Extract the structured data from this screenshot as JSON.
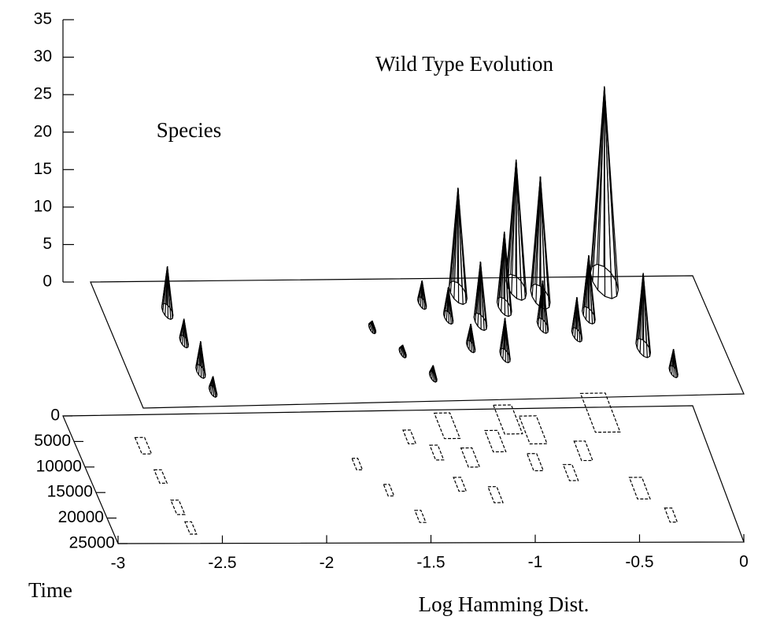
{
  "chart_data": {
    "type": "surface3d",
    "title": "Wild Type Evolution",
    "zlabel": "Species",
    "ylabel": "Time",
    "xlabel": "Log Hamming Dist.",
    "x": [
      -2.68,
      -2.66,
      -2.64,
      -2.62,
      -1.7,
      -1.6,
      -1.5,
      -1.4,
      -1.3,
      -1.25,
      -1.2,
      -1.15,
      -1.1,
      -1.0,
      -0.9,
      -0.85,
      -0.8,
      -0.7,
      -0.6,
      -0.45,
      -0.4,
      -0.3
    ],
    "time": [
      6000,
      12000,
      18000,
      22000,
      10000,
      15000,
      20000,
      5000,
      8000,
      14000,
      3000,
      9000,
      16000,
      6000,
      2000,
      10000,
      4000,
      12000,
      8000,
      1000,
      15000,
      20000
    ],
    "values": [
      6,
      3,
      4,
      2,
      1,
      1,
      1.5,
      3,
      4,
      3,
      14,
      8,
      5,
      10,
      17,
      6,
      16,
      5,
      8,
      26,
      10,
      3
    ],
    "xlim": [
      -3,
      0
    ],
    "xticks": [
      -3,
      -2.5,
      -2,
      -1.5,
      -1,
      -0.5,
      0
    ],
    "ylim": [
      0,
      25000
    ],
    "yticks": [
      0,
      5000,
      10000,
      15000,
      20000,
      25000
    ],
    "zlim": [
      0,
      35
    ],
    "zticks": [
      0,
      5,
      10,
      15,
      20,
      25,
      30,
      35
    ]
  }
}
